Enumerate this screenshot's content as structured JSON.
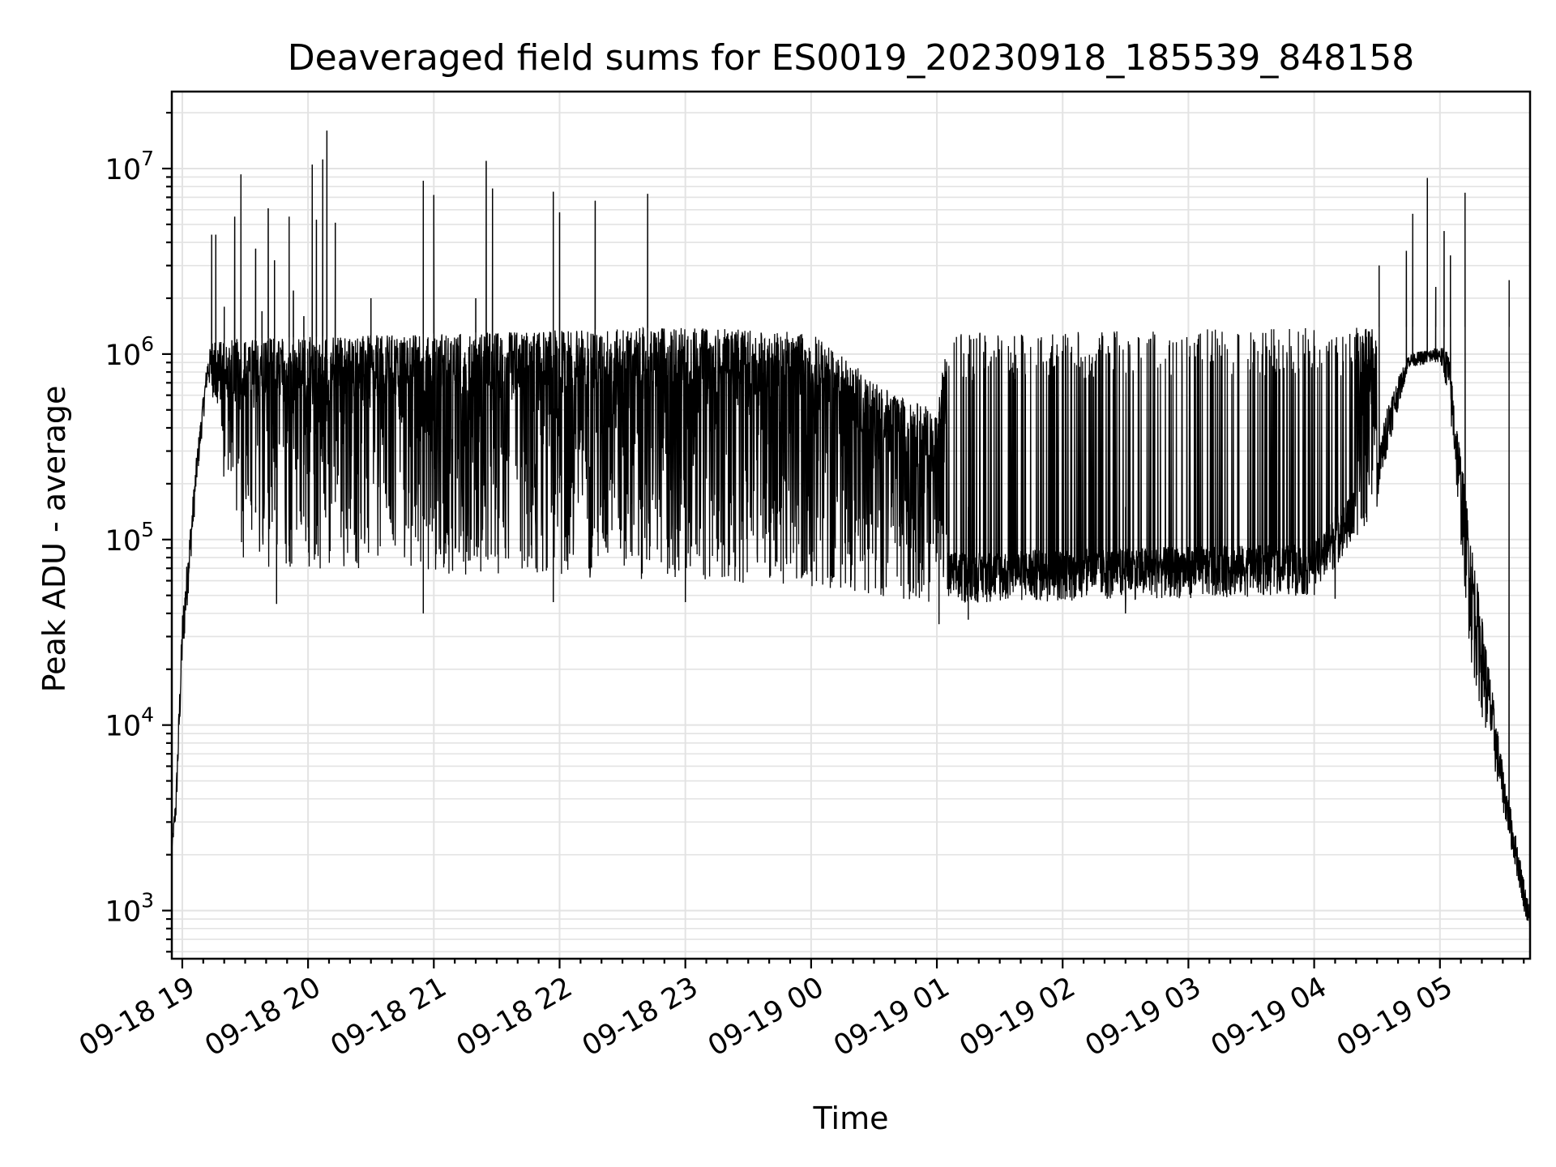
{
  "chart_data": {
    "type": "line",
    "title": "Deaveraged field sums for ES0019_20230918_185539_848158",
    "xlabel": "Time",
    "ylabel": "Peak ADU - average",
    "yscale": "log",
    "ylim": [
      550,
      26000000
    ],
    "xlim": [
      "2023-09-18 18:55",
      "2023-09-19 05:43"
    ],
    "grid": true,
    "x_ticks": [
      {
        "t": "2023-09-18 19:00",
        "label": "09-18 19"
      },
      {
        "t": "2023-09-18 20:00",
        "label": "09-18 20"
      },
      {
        "t": "2023-09-18 21:00",
        "label": "09-18 21"
      },
      {
        "t": "2023-09-18 22:00",
        "label": "09-18 22"
      },
      {
        "t": "2023-09-18 23:00",
        "label": "09-18 23"
      },
      {
        "t": "2023-09-19 00:00",
        "label": "09-19 00"
      },
      {
        "t": "2023-09-19 01:00",
        "label": "09-19 01"
      },
      {
        "t": "2023-09-19 02:00",
        "label": "09-19 02"
      },
      {
        "t": "2023-09-19 03:00",
        "label": "09-19 03"
      },
      {
        "t": "2023-09-19 04:00",
        "label": "09-19 04"
      },
      {
        "t": "2023-09-19 05:00",
        "label": "09-19 05"
      }
    ],
    "y_ticks": [
      {
        "value": 1000,
        "base": "10",
        "exp": "3"
      },
      {
        "value": 10000,
        "base": "10",
        "exp": "4"
      },
      {
        "value": 100000,
        "base": "10",
        "exp": "5"
      },
      {
        "value": 1000000,
        "base": "10",
        "exp": "6"
      },
      {
        "value": 10000000,
        "base": "10",
        "exp": "7"
      }
    ],
    "envelope": [
      {
        "t": "2023-09-18 18:55",
        "high": 2200,
        "low": 2100
      },
      {
        "t": "2023-09-18 18:57",
        "high": 4500,
        "low": 3000
      },
      {
        "t": "2023-09-18 19:00",
        "high": 40000,
        "low": 20000
      },
      {
        "t": "2023-09-18 19:07",
        "high": 300000,
        "low": 200000
      },
      {
        "t": "2023-09-18 19:12",
        "high": 950000,
        "low": 700000
      },
      {
        "t": "2023-09-18 19:15",
        "high": 1300000,
        "low": 560000
      },
      {
        "t": "2023-09-18 19:20",
        "high": 1200000,
        "low": 180000
      },
      {
        "t": "2023-09-18 19:30",
        "high": 1300000,
        "low": 60000
      },
      {
        "t": "2023-09-18 20:00",
        "high": 1400000,
        "low": 55000
      },
      {
        "t": "2023-09-18 21:00",
        "high": 1300000,
        "low": 55000
      },
      {
        "t": "2023-09-18 22:00",
        "high": 1300000,
        "low": 55000
      },
      {
        "t": "2023-09-18 23:00",
        "high": 1400000,
        "low": 52000
      },
      {
        "t": "2023-09-19 00:00",
        "high": 1350000,
        "low": 50000
      },
      {
        "t": "2023-09-19 00:40",
        "high": 700000,
        "low": 50000
      },
      {
        "t": "2023-09-19 01:00",
        "high": 400000,
        "low": 45000
      },
      {
        "t": "2023-09-19 01:05",
        "high": 70000,
        "low": 45000
      },
      {
        "t": "2023-09-19 02:00",
        "high": 90000,
        "low": 45000
      },
      {
        "t": "2023-09-19 03:00",
        "high": 90000,
        "low": 45000
      },
      {
        "t": "2023-09-19 04:00",
        "high": 110000,
        "low": 50000
      },
      {
        "t": "2023-09-19 04:20",
        "high": 150000,
        "low": 60000
      },
      {
        "t": "2023-09-19 04:28",
        "high": 200000,
        "low": 120000
      },
      {
        "t": "2023-09-19 04:35",
        "high": 550000,
        "low": 300000
      },
      {
        "t": "2023-09-19 04:45",
        "high": 1000000,
        "low": 850000
      },
      {
        "t": "2023-09-19 05:00",
        "high": 1100000,
        "low": 900000
      },
      {
        "t": "2023-09-19 05:04",
        "high": 1050000,
        "low": 600000
      },
      {
        "t": "2023-09-19 05:15",
        "high": 100000,
        "low": 20000
      },
      {
        "t": "2023-09-19 05:30",
        "high": 6000,
        "low": 3500
      },
      {
        "t": "2023-09-19 05:43",
        "high": 1000,
        "low": 700
      }
    ],
    "band_top": [
      {
        "t": "2023-09-18 19:15",
        "value": 1200000
      },
      {
        "t": "2023-09-18 23:00",
        "value": 1400000
      },
      {
        "t": "2023-09-19 00:00",
        "value": 1300000
      },
      {
        "t": "2023-09-19 00:40",
        "value": 600000
      },
      {
        "t": "2023-09-19 01:00",
        "value": 500000
      },
      {
        "t": "2023-09-19 01:05",
        "value": 1300000
      },
      {
        "t": "2023-09-19 04:30",
        "value": 1400000
      }
    ],
    "band_bottom": [
      {
        "t": "2023-09-18 19:15",
        "value": 600000
      },
      {
        "t": "2023-09-18 19:20",
        "value": 200000
      },
      {
        "t": "2023-09-18 19:30",
        "value": 70000
      },
      {
        "t": "2023-09-18 23:00",
        "value": 60000
      },
      {
        "t": "2023-09-19 00:00",
        "value": 55000
      },
      {
        "t": "2023-09-19 01:00",
        "value": 45000
      },
      {
        "t": "2023-09-19 04:00",
        "value": 50000
      },
      {
        "t": "2023-09-19 04:30",
        "value": 140000
      }
    ],
    "spikes": [
      {
        "t": "2023-09-18 19:14",
        "value": 4400000
      },
      {
        "t": "2023-09-18 19:16",
        "value": 4400000
      },
      {
        "t": "2023-09-18 19:20",
        "value": 1800000
      },
      {
        "t": "2023-09-18 19:25",
        "value": 5500000
      },
      {
        "t": "2023-09-18 19:28",
        "value": 9300000
      },
      {
        "t": "2023-09-18 19:35",
        "value": 3700000
      },
      {
        "t": "2023-09-18 19:38",
        "value": 1700000
      },
      {
        "t": "2023-09-18 19:41",
        "value": 6100000
      },
      {
        "t": "2023-09-18 19:44",
        "value": 3200000
      },
      {
        "t": "2023-09-18 19:51",
        "value": 5500000
      },
      {
        "t": "2023-09-18 19:53",
        "value": 2200000
      },
      {
        "t": "2023-09-18 19:58",
        "value": 1600000
      },
      {
        "t": "2023-09-18 20:02",
        "value": 10500000
      },
      {
        "t": "2023-09-18 20:04",
        "value": 5300000
      },
      {
        "t": "2023-09-18 20:07",
        "value": 11200000
      },
      {
        "t": "2023-09-18 20:09",
        "value": 16000000
      },
      {
        "t": "2023-09-18 20:13",
        "value": 5100000
      },
      {
        "t": "2023-09-18 20:30",
        "value": 2000000
      },
      {
        "t": "2023-09-18 20:55",
        "value": 8600000
      },
      {
        "t": "2023-09-18 21:00",
        "value": 7200000
      },
      {
        "t": "2023-09-18 21:20",
        "value": 2000000
      },
      {
        "t": "2023-09-18 21:25",
        "value": 11000000
      },
      {
        "t": "2023-09-18 21:28",
        "value": 7800000
      },
      {
        "t": "2023-09-18 21:57",
        "value": 7500000
      },
      {
        "t": "2023-09-18 22:00",
        "value": 5800000
      },
      {
        "t": "2023-09-18 22:17",
        "value": 6700000
      },
      {
        "t": "2023-09-18 22:42",
        "value": 7300000
      },
      {
        "t": "2023-09-19 04:31",
        "value": 3000000
      },
      {
        "t": "2023-09-19 04:44",
        "value": 3600000
      },
      {
        "t": "2023-09-19 04:47",
        "value": 5700000
      },
      {
        "t": "2023-09-19 04:54",
        "value": 8900000
      },
      {
        "t": "2023-09-19 04:58",
        "value": 2300000
      },
      {
        "t": "2023-09-19 05:02",
        "value": 4600000
      },
      {
        "t": "2023-09-19 05:05",
        "value": 3400000
      },
      {
        "t": "2023-09-19 05:12",
        "value": 7400000
      },
      {
        "t": "2023-09-19 05:33",
        "value": 2500000
      }
    ],
    "dips": [
      {
        "t": "2023-09-18 19:35",
        "value": 140000
      },
      {
        "t": "2023-09-18 19:45",
        "value": 45000
      },
      {
        "t": "2023-09-18 20:55",
        "value": 40000
      },
      {
        "t": "2023-09-18 21:57",
        "value": 46000
      },
      {
        "t": "2023-09-18 23:00",
        "value": 46000
      },
      {
        "t": "2023-09-19 01:01",
        "value": 35000
      },
      {
        "t": "2023-09-19 01:15",
        "value": 37000
      },
      {
        "t": "2023-09-19 02:30",
        "value": 40000
      },
      {
        "t": "2023-09-19 04:10",
        "value": 48000
      }
    ]
  }
}
